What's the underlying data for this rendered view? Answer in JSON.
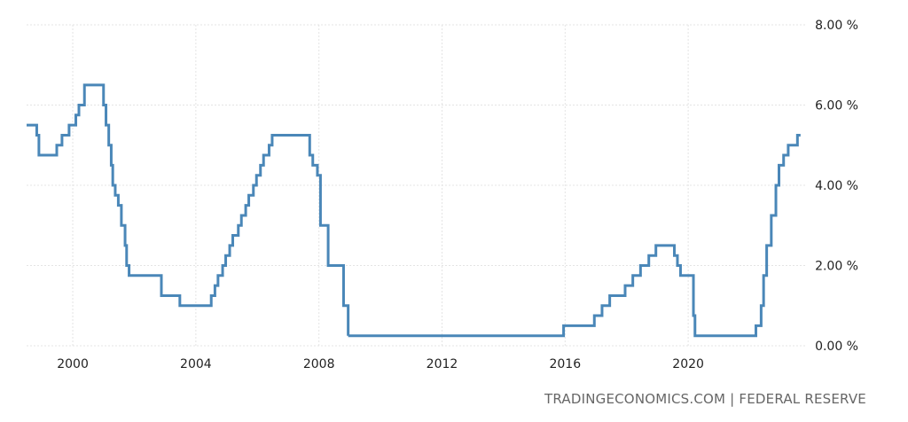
{
  "source_label": "TRADINGECONOMICS.COM | FEDERAL RESERVE",
  "colors": {
    "line": "#4a87b8",
    "grid": "#e4e4e4",
    "text": "#222222",
    "source": "#666666"
  },
  "chart_data": {
    "type": "line",
    "title": "",
    "xlabel": "",
    "ylabel": "",
    "xlim": [
      1998.5,
      2023.8
    ],
    "ylim": [
      0,
      8
    ],
    "grid": true,
    "x_ticks": [
      {
        "value": 2000,
        "label": "2000"
      },
      {
        "value": 2004,
        "label": "2004"
      },
      {
        "value": 2008,
        "label": "2008"
      },
      {
        "value": 2012,
        "label": "2012"
      },
      {
        "value": 2016,
        "label": "2016"
      },
      {
        "value": 2020,
        "label": "2020"
      }
    ],
    "y_ticks": [
      {
        "value": 0,
        "label": "0.00 %"
      },
      {
        "value": 2,
        "label": "2.00 %"
      },
      {
        "value": 4,
        "label": "4.00 %"
      },
      {
        "value": 6,
        "label": "6.00 %"
      },
      {
        "value": 8,
        "label": "8.00 %"
      }
    ],
    "series": [
      {
        "step": true,
        "x": [
          1998.5,
          1998.75,
          1998.83,
          1998.9,
          1999.48,
          1999.65,
          1999.88,
          2000.1,
          2000.2,
          2000.38,
          2001.0,
          2001.08,
          2001.17,
          2001.25,
          2001.3,
          2001.38,
          2001.48,
          2001.58,
          2001.7,
          2001.75,
          2001.83,
          2001.88,
          2001.95,
          2002.88,
          2003.48,
          2004.5,
          2004.62,
          2004.72,
          2004.87,
          2004.97,
          2005.1,
          2005.2,
          2005.38,
          2005.48,
          2005.62,
          2005.72,
          2005.87,
          2005.97,
          2006.1,
          2006.2,
          2006.38,
          2006.48,
          2007.7,
          2007.8,
          2007.95,
          2008.05,
          2008.12,
          2008.3,
          2008.8,
          2008.95
        ],
        "y": [
          5.5,
          5.5,
          5.25,
          4.75,
          5.0,
          5.25,
          5.5,
          5.75,
          6.0,
          6.5,
          6.0,
          5.5,
          5.0,
          4.5,
          4.0,
          3.75,
          3.5,
          3.0,
          2.5,
          2.0,
          1.75,
          1.75,
          1.75,
          1.25,
          1.0,
          1.25,
          1.5,
          1.75,
          2.0,
          2.25,
          2.5,
          2.75,
          3.0,
          3.25,
          3.5,
          3.75,
          4.0,
          4.25,
          4.5,
          4.75,
          5.0,
          5.25,
          4.75,
          4.5,
          4.25,
          3.0,
          3.0,
          2.0,
          1.0,
          0.25
        ]
      },
      {
        "step": true,
        "x": [
          2008.95,
          2015.95,
          2016.95,
          2017.2,
          2017.45,
          2017.95,
          2018.2,
          2018.45,
          2018.72,
          2018.95,
          2019.55,
          2019.65,
          2019.75,
          2020.17,
          2020.22,
          2022.2,
          2022.37,
          2022.45,
          2022.55,
          2022.7,
          2022.85,
          2022.95,
          2023.1,
          2023.25,
          2023.55,
          2023.65
        ],
        "y": [
          0.25,
          0.5,
          0.75,
          1.0,
          1.25,
          1.5,
          1.75,
          2.0,
          2.25,
          2.5,
          2.25,
          2.0,
          1.75,
          0.75,
          0.25,
          0.5,
          1.0,
          1.75,
          2.5,
          3.25,
          4.0,
          4.5,
          4.75,
          5.0,
          5.25,
          5.25
        ]
      }
    ]
  }
}
